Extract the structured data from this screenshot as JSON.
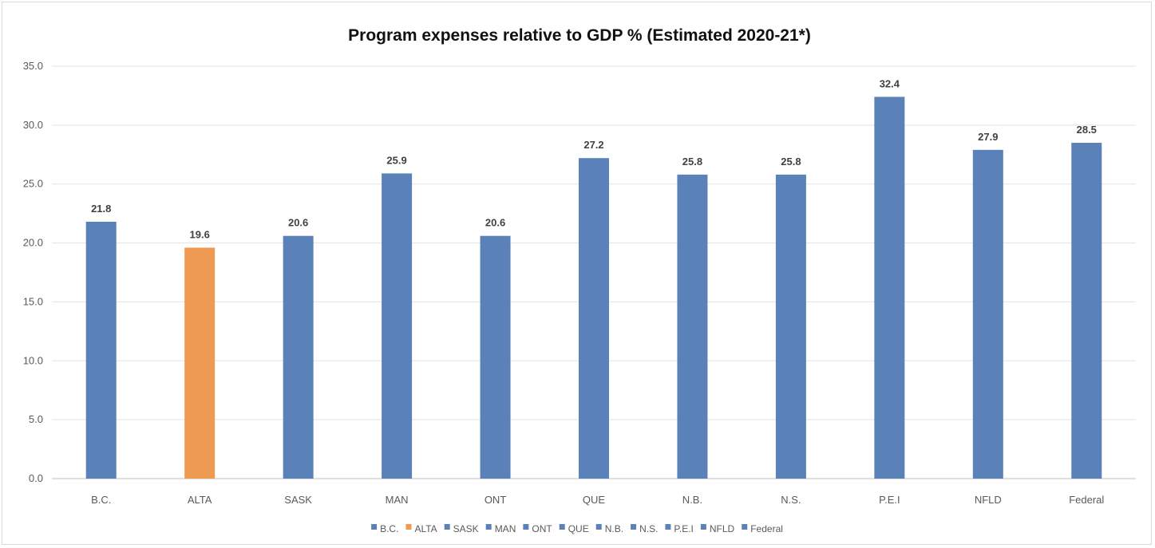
{
  "chart_data": {
    "type": "bar",
    "title": "Program expenses relative to GDP % (Estimated 2020-21*)",
    "xlabel": "",
    "ylabel": "",
    "categories": [
      "B.C.",
      "ALTA",
      "SASK",
      "MAN",
      "ONT",
      "QUE",
      "N.B.",
      "N.S.",
      "P.E.I",
      "NFLD",
      "Federal"
    ],
    "values": [
      21.8,
      19.6,
      20.6,
      25.9,
      20.6,
      27.2,
      25.8,
      25.8,
      32.4,
      27.9,
      28.5
    ],
    "data_labels": [
      "21.8",
      "19.6",
      "20.6",
      "25.9",
      "20.6",
      "27.2",
      "25.8",
      "25.8",
      "32.4",
      "27.9",
      "28.5"
    ],
    "ylim": [
      0,
      35
    ],
    "yticks": [
      "0.0",
      "5.0",
      "10.0",
      "15.0",
      "20.0",
      "25.0",
      "30.0",
      "35.0"
    ],
    "ytick_values": [
      0,
      5,
      10,
      15,
      20,
      25,
      30,
      35
    ],
    "grid": true,
    "legend_placement": "bottom",
    "colors": [
      "#5a82b9",
      "#ee9a52",
      "#5a82b9",
      "#5a82b9",
      "#5a82b9",
      "#5a82b9",
      "#5a82b9",
      "#5a82b9",
      "#5a82b9",
      "#5a82b9",
      "#5a82b9"
    ]
  }
}
